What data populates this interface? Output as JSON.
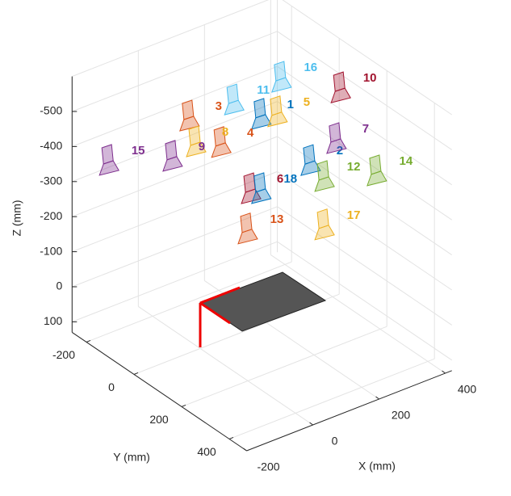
{
  "chart_data": {
    "type": "camera-extrinsics",
    "xlabel": "X (mm)",
    "ylabel": "Y (mm)",
    "zlabel": "Z (mm)",
    "xlim": [
      -200,
      420
    ],
    "ylim": [
      -260,
      473
    ],
    "zlim": [
      -600,
      130
    ],
    "xticks": [
      -200,
      0,
      200,
      400
    ],
    "yticks": [
      -200,
      0,
      200,
      400
    ],
    "zticks": [
      -500,
      -400,
      -300,
      -200,
      -100,
      0,
      100
    ],
    "grid": true,
    "cameras": {
      "labels": [
        "1",
        "2",
        "3",
        "4",
        "5",
        "6",
        "7",
        "8",
        "9",
        "10",
        "11",
        "12",
        "13",
        "14",
        "15",
        "16",
        "17",
        "18"
      ],
      "x": [
        180,
        329,
        -37,
        59,
        229,
        149,
        407,
        -17,
        -88,
        420,
        98,
        371,
        139,
        529,
        -280,
        241,
        371,
        180
      ],
      "y": [
        0,
        0,
        0,
        0,
        0,
        0,
        0,
        0,
        0,
        0,
        0,
        0,
        0,
        0,
        0,
        0,
        0,
        0
      ],
      "z": [
        -457,
        -270,
        -532,
        -421,
        -446,
        -256,
        -304,
        -451,
        -436,
        -444,
        -528,
        -209,
        -145,
        -167,
        -495,
        -540,
        -71,
        -245
      ],
      "colors": [
        "#0072BD",
        "#0072BD",
        "#D95319",
        "#D95319",
        "#EDB120",
        "#A2142F",
        "#7E2F8E",
        "#EDB120",
        "#7E2F8E",
        "#A2142F",
        "#4DBEEE",
        "#77AC30",
        "#D95319",
        "#77AC30",
        "#7E2F8E",
        "#4DBEEE",
        "#EDB120",
        "#0072BD"
      ]
    }
  }
}
